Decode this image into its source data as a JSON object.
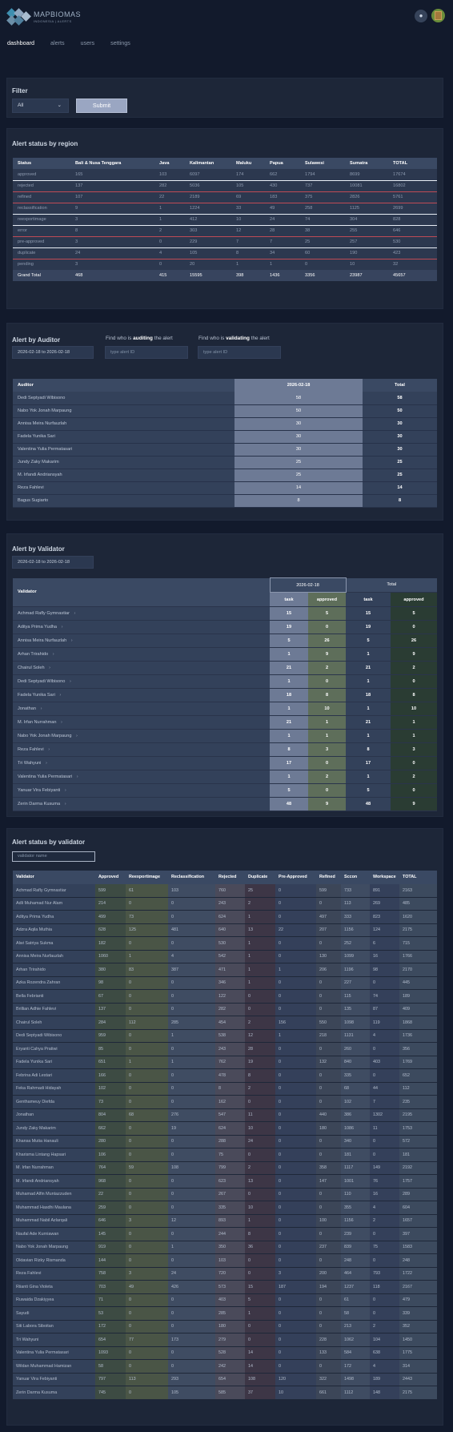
{
  "app": {
    "name": "MAPBIOMAS",
    "subtitle": "INDONESIA | ALERTS",
    "bell_icon": "bell-icon"
  },
  "nav": [
    "dashboard",
    "alerts",
    "users",
    "settings"
  ],
  "filter": {
    "title": "Filter",
    "select_value": "All",
    "submit": "Submit"
  },
  "region": {
    "title": "Alert status by region",
    "headers": [
      "Status",
      "Bali & Nusa Tenggara",
      "Java",
      "Kalimantan",
      "Maluku",
      "Papua",
      "Sulawesi",
      "Sumatra",
      "TOTAL"
    ],
    "rows": [
      [
        "approved",
        "165",
        "103",
        "6097",
        "174",
        "662",
        "1794",
        "8699",
        "17674"
      ],
      [
        "rejected",
        "137",
        "282",
        "5036",
        "105",
        "430",
        "737",
        "10081",
        "16802"
      ],
      [
        "refined",
        "107",
        "22",
        "2189",
        "69",
        "183",
        "375",
        "2826",
        "5761"
      ],
      [
        "reclassification",
        "9",
        "1",
        "1224",
        "33",
        "49",
        "258",
        "1125",
        "2699"
      ],
      [
        "reexportimage",
        "3",
        "1",
        "412",
        "10",
        "24",
        "74",
        "304",
        "828"
      ],
      [
        "error",
        "8",
        "2",
        "303",
        "12",
        "28",
        "38",
        "255",
        "646"
      ],
      [
        "pre-approved",
        "3",
        "0",
        "229",
        "7",
        "7",
        "25",
        "257",
        "530"
      ],
      [
        "duplicate",
        "24",
        "4",
        "105",
        "8",
        "34",
        "60",
        "190",
        "423"
      ],
      [
        "pending",
        "3",
        "0",
        "20",
        "1",
        "1",
        "0",
        "10",
        "32"
      ]
    ],
    "total": [
      "Grand Total",
      "468",
      "415",
      "15595",
      "398",
      "1436",
      "3356",
      "23987",
      "45657"
    ]
  },
  "auditor": {
    "title": "Alert by Auditor",
    "date_range": "2026-02-18 to 2026-02-18",
    "find_auditing": [
      "Find who is ",
      "auditing",
      " the alert"
    ],
    "find_validating": [
      "Find who is ",
      "validating",
      " the alert"
    ],
    "placeholder": "type alert ID",
    "headers": [
      "Auditor",
      "2026-02-18",
      "Total"
    ],
    "rows": [
      [
        "Dedi Septyadi Wibisono",
        "58",
        "58"
      ],
      [
        "Nabo Yok Jonah Marpaung",
        "50",
        "50"
      ],
      [
        "Annisa Meira Nurfauzlah",
        "30",
        "30"
      ],
      [
        "Fadela Yunika Sari",
        "30",
        "30"
      ],
      [
        "Valentina Yulia Permatasari",
        "30",
        "30"
      ],
      [
        "Jundy Zaky Makarim",
        "25",
        "25"
      ],
      [
        "M. Irfandi Andriansyah",
        "25",
        "25"
      ],
      [
        "Reza Fahlevi",
        "14",
        "14"
      ],
      [
        "Bagus Sugiarto",
        "8",
        "8"
      ]
    ]
  },
  "validator": {
    "title": "Alert by Validator",
    "date_range": "2026-02-18 to 2026-02-18",
    "head": {
      "validator": "Validator",
      "date": "2026-02-18",
      "total": "Total",
      "task": "task",
      "approved": "approved"
    },
    "arrow_icon": "chevron-right-icon",
    "rows": [
      [
        "Achmad Rafly Gymnastiar",
        "15",
        "5",
        "15",
        "5"
      ],
      [
        "Aditya Prima Yudha",
        "19",
        "0",
        "19",
        "0"
      ],
      [
        "Annisa Meira Nurfauzlah",
        "5",
        "26",
        "5",
        "26"
      ],
      [
        "Arhan Trirahido",
        "1",
        "9",
        "1",
        "9"
      ],
      [
        "Chairul Soleh",
        "21",
        "2",
        "21",
        "2"
      ],
      [
        "Dedi Septyadi Wibisono",
        "1",
        "0",
        "1",
        "0"
      ],
      [
        "Fadela Yunika Sari",
        "18",
        "8",
        "18",
        "8"
      ],
      [
        "Jonathan",
        "1",
        "10",
        "1",
        "10"
      ],
      [
        "M. Irfan Nurrahman",
        "21",
        "1",
        "21",
        "1"
      ],
      [
        "Nabo Yok Jonah Marpaung",
        "1",
        "1",
        "1",
        "1"
      ],
      [
        "Reza Fahlevi",
        "8",
        "3",
        "8",
        "3"
      ],
      [
        "Tri Wahyuni",
        "17",
        "0",
        "17",
        "0"
      ],
      [
        "Valentina Yulia Permatasari",
        "1",
        "2",
        "1",
        "2"
      ],
      [
        "Yanuar Vira Febiyanti",
        "5",
        "0",
        "5",
        "0"
      ],
      [
        "Zerin Darma Kusuma",
        "48",
        "9",
        "48",
        "9"
      ]
    ]
  },
  "status_validator": {
    "title": "Alert status by validator",
    "placeholder": "validator name",
    "headers": [
      "Validator",
      "Approved",
      "Reexportimage",
      "Reclassification",
      "Rejected",
      "Duplicate",
      "Pre-Approved",
      "Refined",
      "Sccon",
      "Workspace",
      "TOTAL"
    ],
    "rows": [
      [
        "Achmad Rafly Gymnastiar",
        "599",
        "61",
        "103",
        "760",
        "25",
        "0",
        "599",
        "733",
        "891",
        "2163"
      ],
      [
        "Adli Muhamad Nur Alam",
        "214",
        "0",
        "0",
        "243",
        "2",
        "0",
        "0",
        "113",
        "269",
        "485"
      ],
      [
        "Aditya Prima Yudha",
        "499",
        "73",
        "0",
        "624",
        "1",
        "0",
        "497",
        "333",
        "823",
        "1620"
      ],
      [
        "Adzra Aqila Muthia",
        "628",
        "125",
        "481",
        "640",
        "13",
        "22",
        "207",
        "1156",
        "124",
        "2175"
      ],
      [
        "Alwi Satriya Sukma",
        "182",
        "0",
        "0",
        "530",
        "1",
        "0",
        "0",
        "252",
        "6",
        "715"
      ],
      [
        "Annisa Meira Nurfauzlah",
        "1060",
        "1",
        "4",
        "542",
        "1",
        "0",
        "130",
        "1099",
        "16",
        "1766"
      ],
      [
        "Arhan Trirahido",
        "380",
        "83",
        "387",
        "471",
        "1",
        "1",
        "206",
        "1196",
        "98",
        "2170"
      ],
      [
        "Azka Rozendra Zahran",
        "98",
        "0",
        "0",
        "346",
        "1",
        "0",
        "0",
        "227",
        "0",
        "445"
      ],
      [
        "Bella Febrianti",
        "67",
        "0",
        "0",
        "122",
        "0",
        "0",
        "0",
        "115",
        "74",
        "189"
      ],
      [
        "Brillian Adhie Fahlevi",
        "137",
        "0",
        "0",
        "282",
        "0",
        "0",
        "0",
        "135",
        "87",
        "409"
      ],
      [
        "Chairul Soleh",
        "284",
        "112",
        "285",
        "454",
        "2",
        "156",
        "550",
        "1098",
        "119",
        "1868"
      ],
      [
        "Dedi Septyadi Wibisono",
        "959",
        "0",
        "1",
        "538",
        "12",
        "1",
        "218",
        "1131",
        "4",
        "1736"
      ],
      [
        "Eryanti Cahya Pratiwi",
        "85",
        "0",
        "0",
        "243",
        "28",
        "0",
        "0",
        "260",
        "0",
        "356"
      ],
      [
        "Fadela Yunika Sari",
        "651",
        "1",
        "1",
        "762",
        "19",
        "0",
        "132",
        "840",
        "403",
        "1769"
      ],
      [
        "Febrina Adi Lestari",
        "166",
        "0",
        "0",
        "478",
        "8",
        "0",
        "0",
        "335",
        "0",
        "652"
      ],
      [
        "Feka Rahmadi Hidayah",
        "102",
        "0",
        "0",
        "8",
        "2",
        "0",
        "0",
        "68",
        "44",
        "112"
      ],
      [
        "Genthameuy Diefda",
        "73",
        "0",
        "0",
        "162",
        "0",
        "0",
        "0",
        "102",
        "7",
        "235"
      ],
      [
        "Jonathan",
        "804",
        "68",
        "276",
        "547",
        "11",
        "0",
        "440",
        "386",
        "1302",
        "2195"
      ],
      [
        "Jundy Zaky Makarim",
        "662",
        "0",
        "19",
        "624",
        "10",
        "0",
        "180",
        "1086",
        "11",
        "1753"
      ],
      [
        "Khansa Mutia Hanauli",
        "280",
        "0",
        "0",
        "288",
        "24",
        "0",
        "0",
        "340",
        "0",
        "572"
      ],
      [
        "Kharisma Lintang Hapsari",
        "106",
        "0",
        "0",
        "75",
        "0",
        "0",
        "0",
        "181",
        "0",
        "181"
      ],
      [
        "M. Irfan Nurrahman",
        "764",
        "59",
        "108",
        "799",
        "2",
        "0",
        "358",
        "1117",
        "149",
        "2192"
      ],
      [
        "M. Irfandi Andriansyah",
        "968",
        "0",
        "0",
        "623",
        "13",
        "0",
        "147",
        "1001",
        "76",
        "1757"
      ],
      [
        "Muhamad Alfin Muntazzuden",
        "22",
        "0",
        "0",
        "267",
        "0",
        "0",
        "0",
        "110",
        "16",
        "289"
      ],
      [
        "Muhammad Hasdhi Maulana",
        "259",
        "0",
        "0",
        "335",
        "10",
        "0",
        "0",
        "355",
        "4",
        "604"
      ],
      [
        "Muhammad Nabil Azlarqali",
        "646",
        "3",
        "12",
        "893",
        "1",
        "0",
        "100",
        "1156",
        "2",
        "1657"
      ],
      [
        "Naufal Ade Kurniawan",
        "145",
        "0",
        "0",
        "244",
        "8",
        "0",
        "0",
        "239",
        "0",
        "397"
      ],
      [
        "Nabo Yok Jonah Marpaung",
        "919",
        "0",
        "1",
        "350",
        "36",
        "0",
        "237",
        "839",
        "75",
        "1583"
      ],
      [
        "Oktavian Rizky Rismanda",
        "144",
        "0",
        "0",
        "103",
        "0",
        "0",
        "0",
        "248",
        "0",
        "248"
      ],
      [
        "Reza Fahlevi",
        "758",
        "3",
        "24",
        "720",
        "0",
        "3",
        "200",
        "464",
        "793",
        "1722"
      ],
      [
        "Riianti Gina Violeta",
        "703",
        "49",
        "426",
        "573",
        "15",
        "187",
        "194",
        "1237",
        "118",
        "2167"
      ],
      [
        "Ruwaida Dzakiyyea",
        "71",
        "0",
        "0",
        "403",
        "5",
        "0",
        "0",
        "61",
        "0",
        "479"
      ],
      [
        "Sayudi",
        "53",
        "0",
        "0",
        "285",
        "1",
        "0",
        "0",
        "58",
        "0",
        "339"
      ],
      [
        "Siti Labora Siboitan",
        "172",
        "0",
        "0",
        "180",
        "0",
        "0",
        "0",
        "213",
        "2",
        "352"
      ],
      [
        "Tri Wahyuni",
        "654",
        "77",
        "173",
        "279",
        "0",
        "0",
        "228",
        "1062",
        "104",
        "1450"
      ],
      [
        "Valentina Yulia Permatasari",
        "1093",
        "0",
        "0",
        "528",
        "14",
        "0",
        "133",
        "584",
        "638",
        "1775"
      ],
      [
        "Wildan Muhammad Hamizan",
        "58",
        "0",
        "0",
        "242",
        "14",
        "0",
        "0",
        "172",
        "4",
        "314"
      ],
      [
        "Yanuar Vira Febiyanti",
        "797",
        "113",
        "293",
        "654",
        "108",
        "120",
        "322",
        "1498",
        "189",
        "2443"
      ],
      [
        "Zerin Darma Kusuma",
        "745",
        "0",
        "105",
        "585",
        "37",
        "10",
        "661",
        "1112",
        "148",
        "2175"
      ]
    ]
  }
}
